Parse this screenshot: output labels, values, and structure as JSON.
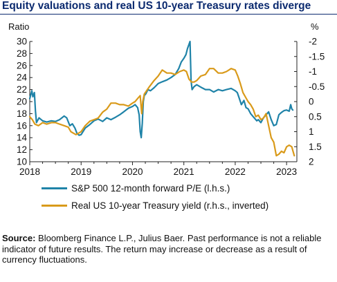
{
  "title": "Equity valuations and real US 10-year Treasury rates diverge",
  "source_label": "Source:",
  "source_text": "Bloomberg Finance L.P., Julius Baer. Past performance is not a reliable indicator of future results. The return may increase or decrease as a result of currency fluctuations.",
  "colors": {
    "title": "#0b2a6f",
    "pe": "#1f83a8",
    "yield": "#d99a1a"
  },
  "chart_data": {
    "type": "line",
    "left_axis": {
      "label": "Ratio",
      "ylim": [
        10,
        30
      ],
      "ticks": [
        10,
        12,
        14,
        16,
        18,
        20,
        22,
        24,
        26,
        28,
        30
      ]
    },
    "right_axis": {
      "label": "%",
      "ylim": [
        2,
        -2
      ],
      "inverted": true,
      "ticks": [
        "2",
        "1.5",
        "1",
        "0.5",
        "0",
        "-0.5",
        "-1",
        "-1.5",
        "-2"
      ]
    },
    "x_axis": {
      "xlim": [
        2018.0,
        2023.2
      ],
      "ticks": [
        "2018",
        "2019",
        "2020",
        "2021",
        "2022",
        "2023"
      ]
    },
    "series": [
      {
        "name": "S&P 500 12-month forward P/E (l.h.s.)",
        "axis": "left",
        "x": [
          2018.0,
          2018.04,
          2018.06,
          2018.09,
          2018.11,
          2018.13,
          2018.18,
          2018.25,
          2018.33,
          2018.42,
          2018.5,
          2018.58,
          2018.67,
          2018.72,
          2018.78,
          2018.83,
          2018.88,
          2018.92,
          2018.96,
          2019.0,
          2019.08,
          2019.17,
          2019.25,
          2019.33,
          2019.42,
          2019.5,
          2019.58,
          2019.67,
          2019.75,
          2019.83,
          2019.92,
          2020.0,
          2020.05,
          2020.1,
          2020.13,
          2020.15,
          2020.17,
          2020.19,
          2020.21,
          2020.23,
          2020.26,
          2020.3,
          2020.35,
          2020.42,
          2020.5,
          2020.58,
          2020.67,
          2020.75,
          2020.83,
          2020.9,
          2020.95,
          2021.0,
          2021.04,
          2021.07,
          2021.1,
          2021.12,
          2021.14,
          2021.16,
          2021.2,
          2021.25,
          2021.33,
          2021.42,
          2021.5,
          2021.58,
          2021.67,
          2021.75,
          2021.83,
          2021.92,
          2022.0,
          2022.04,
          2022.08,
          2022.12,
          2022.17,
          2022.21,
          2022.25,
          2022.3,
          2022.35,
          2022.42,
          2022.45,
          2022.5,
          2022.55,
          2022.6,
          2022.65,
          2022.7,
          2022.75,
          2022.8,
          2022.85,
          2022.9,
          2022.95,
          2023.0,
          2023.05,
          2023.08,
          2023.1,
          2023.12
        ],
        "values": [
          20.5,
          21.8,
          20.8,
          21.5,
          18.5,
          16.5,
          17.3,
          16.8,
          16.6,
          16.8,
          16.7,
          17.0,
          17.6,
          17.3,
          16.0,
          16.3,
          15.6,
          14.7,
          14.4,
          14.5,
          15.6,
          16.2,
          16.8,
          17.1,
          16.7,
          17.3,
          17.0,
          17.4,
          17.8,
          18.3,
          18.9,
          19.2,
          19.5,
          19.0,
          17.8,
          15.0,
          14.0,
          16.4,
          20.0,
          21.0,
          21.3,
          22.0,
          21.8,
          22.3,
          23.0,
          23.3,
          23.6,
          24.0,
          24.5,
          25.5,
          26.6,
          27.2,
          27.8,
          28.8,
          29.5,
          30.0,
          23.5,
          22.0,
          22.5,
          22.8,
          22.4,
          22.0,
          22.0,
          21.6,
          22.0,
          21.8,
          22.0,
          22.2,
          21.8,
          21.5,
          20.5,
          19.5,
          20.2,
          19.0,
          18.8,
          18.0,
          17.5,
          16.8,
          17.0,
          16.5,
          17.3,
          17.8,
          18.3,
          17.0,
          16.0,
          16.2,
          17.8,
          18.2,
          18.5,
          18.6,
          18.4,
          19.5,
          18.8,
          18.6
        ]
      },
      {
        "name": "Real US 10-year Treasury yield (r.h.s., inverted)",
        "axis": "right",
        "x": [
          2018.0,
          2018.05,
          2018.1,
          2018.17,
          2018.25,
          2018.33,
          2018.42,
          2018.5,
          2018.58,
          2018.67,
          2018.75,
          2018.8,
          2018.85,
          2018.9,
          2018.95,
          2019.0,
          2019.08,
          2019.17,
          2019.25,
          2019.33,
          2019.42,
          2019.5,
          2019.58,
          2019.67,
          2019.75,
          2019.83,
          2019.92,
          2020.0,
          2020.05,
          2020.1,
          2020.15,
          2020.18,
          2020.2,
          2020.23,
          2020.27,
          2020.33,
          2020.42,
          2020.5,
          2020.58,
          2020.67,
          2020.75,
          2020.83,
          2020.92,
          2021.0,
          2021.05,
          2021.1,
          2021.15,
          2021.2,
          2021.25,
          2021.33,
          2021.42,
          2021.5,
          2021.58,
          2021.67,
          2021.75,
          2021.83,
          2021.92,
          2022.0,
          2022.05,
          2022.1,
          2022.15,
          2022.2,
          2022.25,
          2022.3,
          2022.35,
          2022.4,
          2022.45,
          2022.5,
          2022.55,
          2022.6,
          2022.65,
          2022.7,
          2022.75,
          2022.8,
          2022.85,
          2022.9,
          2022.95,
          2023.0,
          2023.05,
          2023.1,
          2023.15
        ],
        "values": [
          0.5,
          0.6,
          0.75,
          0.8,
          0.7,
          0.75,
          0.7,
          0.7,
          0.75,
          0.8,
          0.85,
          1.0,
          1.05,
          1.1,
          1.05,
          1.0,
          0.8,
          0.65,
          0.6,
          0.55,
          0.35,
          0.25,
          0.05,
          0.05,
          0.1,
          0.1,
          0.15,
          0.05,
          0.0,
          -0.1,
          -0.2,
          0.4,
          0.0,
          -0.25,
          -0.35,
          -0.5,
          -0.7,
          -0.85,
          -1.05,
          -0.95,
          -0.95,
          -0.9,
          -1.0,
          -1.05,
          -1.0,
          -0.75,
          -0.65,
          -0.65,
          -0.7,
          -0.85,
          -0.9,
          -1.1,
          -1.1,
          -0.95,
          -0.95,
          -1.0,
          -1.1,
          -1.05,
          -0.85,
          -0.6,
          -0.3,
          -0.15,
          0.0,
          0.1,
          0.25,
          0.5,
          0.45,
          0.6,
          0.55,
          0.4,
          0.8,
          1.2,
          1.35,
          1.8,
          1.75,
          1.65,
          1.7,
          1.5,
          1.45,
          1.5,
          1.8
        ]
      }
    ]
  }
}
